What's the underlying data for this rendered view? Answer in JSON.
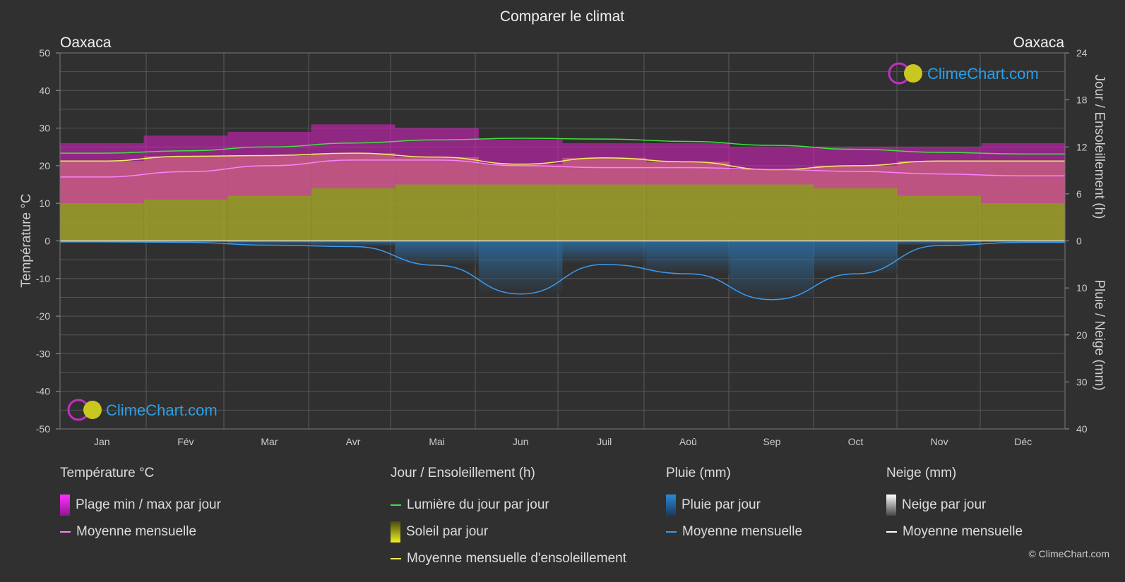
{
  "title": "Comparer le climat",
  "location_left": "Oaxaca",
  "location_right": "Oaxaca",
  "axis_left_label": "Température °C",
  "axis_right_top_label": "Jour / Ensoleillement (h)",
  "axis_right_bottom_label": "Pluie / Neige (mm)",
  "watermark_text": "ClimeChart.com",
  "copyright": "© ClimeChart.com",
  "colors": {
    "background": "#303030",
    "temp_range": "#e020c8",
    "temp_mean": "#ff80ff",
    "daylight": "#40e040",
    "sunshine_fill": "#9c9c2c",
    "sunshine_mean": "#f0f060",
    "rain": "#2a8ad8",
    "rain_mean": "#3a9af0",
    "snow_mean": "#ffffff",
    "watermark": "#2aa0e8"
  },
  "legend": {
    "temp": {
      "header": "Température °C",
      "range": "Plage min / max par jour",
      "mean": "Moyenne mensuelle"
    },
    "sun": {
      "header": "Jour / Ensoleillement (h)",
      "daylight": "Lumière du jour par jour",
      "sunshine": "Soleil par jour",
      "sunshine_mean": "Moyenne mensuelle d'ensoleillement"
    },
    "rain": {
      "header": "Pluie (mm)",
      "per_day": "Pluie par jour",
      "mean": "Moyenne mensuelle"
    },
    "snow": {
      "header": "Neige (mm)",
      "per_day": "Neige par jour",
      "mean": "Moyenne mensuelle"
    }
  },
  "chart_data": {
    "type": "area",
    "categories": [
      "Jan",
      "Fév",
      "Mar",
      "Avr",
      "Mai",
      "Jun",
      "Juil",
      "Aoû",
      "Sep",
      "Oct",
      "Nov",
      "Déc"
    ],
    "y_left": {
      "label": "Température °C",
      "ylim": [
        -50,
        50
      ],
      "ticks": [
        50,
        40,
        30,
        20,
        10,
        0,
        -10,
        -20,
        -30,
        -40,
        -50
      ]
    },
    "y_right_top": {
      "label": "Jour / Ensoleillement (h)",
      "ylim": [
        0,
        24
      ],
      "ticks": [
        24,
        18,
        12,
        6,
        0
      ]
    },
    "y_right_bottom": {
      "label": "Pluie / Neige (mm)",
      "ylim": [
        0,
        40
      ],
      "ticks": [
        0,
        10,
        20,
        30,
        40
      ]
    },
    "grid": true,
    "series": [
      {
        "name": "Plage min / max par jour",
        "axis": "temp",
        "min": [
          10,
          11,
          12,
          14,
          15,
          15,
          15,
          15,
          15,
          14,
          12,
          10
        ],
        "max": [
          26,
          28,
          29,
          31,
          30,
          27,
          26,
          26,
          25,
          25,
          25,
          26
        ]
      },
      {
        "name": "Moyenne mensuelle",
        "axis": "temp",
        "values": [
          17,
          18.4,
          20,
          21.5,
          21.5,
          20,
          19.5,
          19.5,
          19,
          18.5,
          17.8,
          17.3
        ]
      },
      {
        "name": "Lumière du jour par jour",
        "axis": "hours",
        "values": [
          11.2,
          11.5,
          12,
          12.5,
          12.9,
          13.1,
          13,
          12.7,
          12.2,
          11.7,
          11.3,
          11.1
        ]
      },
      {
        "name": "Soleil par jour",
        "axis": "hours",
        "values": [
          10.2,
          10.8,
          10.9,
          11.2,
          10.7,
          9.8,
          10.6,
          10.1,
          9.1,
          9.6,
          10.2,
          10.2
        ]
      },
      {
        "name": "Moyenne mensuelle d'ensoleillement",
        "axis": "hours",
        "values": [
          10.2,
          10.8,
          10.9,
          11.2,
          10.7,
          9.8,
          10.6,
          10.1,
          9.1,
          9.6,
          10.2,
          10.2
        ]
      },
      {
        "name": "Pluie par jour",
        "axis": "rain",
        "values": [
          0.2,
          0.3,
          0.9,
          1.2,
          5.2,
          11.3,
          5,
          7,
          12.5,
          7,
          1,
          0.3
        ]
      },
      {
        "name": "Moyenne mensuelle",
        "axis": "rain",
        "values": [
          0.2,
          0.3,
          0.9,
          1.2,
          5.2,
          11.3,
          5,
          7,
          12.5,
          7,
          1,
          0.3
        ]
      },
      {
        "name": "Neige par jour",
        "axis": "snow",
        "values": [
          0,
          0,
          0,
          0,
          0,
          0,
          0,
          0,
          0,
          0,
          0,
          0
        ]
      },
      {
        "name": "Moyenne mensuelle",
        "axis": "snow",
        "values": [
          0,
          0,
          0,
          0,
          0,
          0,
          0,
          0,
          0,
          0,
          0,
          0
        ]
      }
    ]
  }
}
